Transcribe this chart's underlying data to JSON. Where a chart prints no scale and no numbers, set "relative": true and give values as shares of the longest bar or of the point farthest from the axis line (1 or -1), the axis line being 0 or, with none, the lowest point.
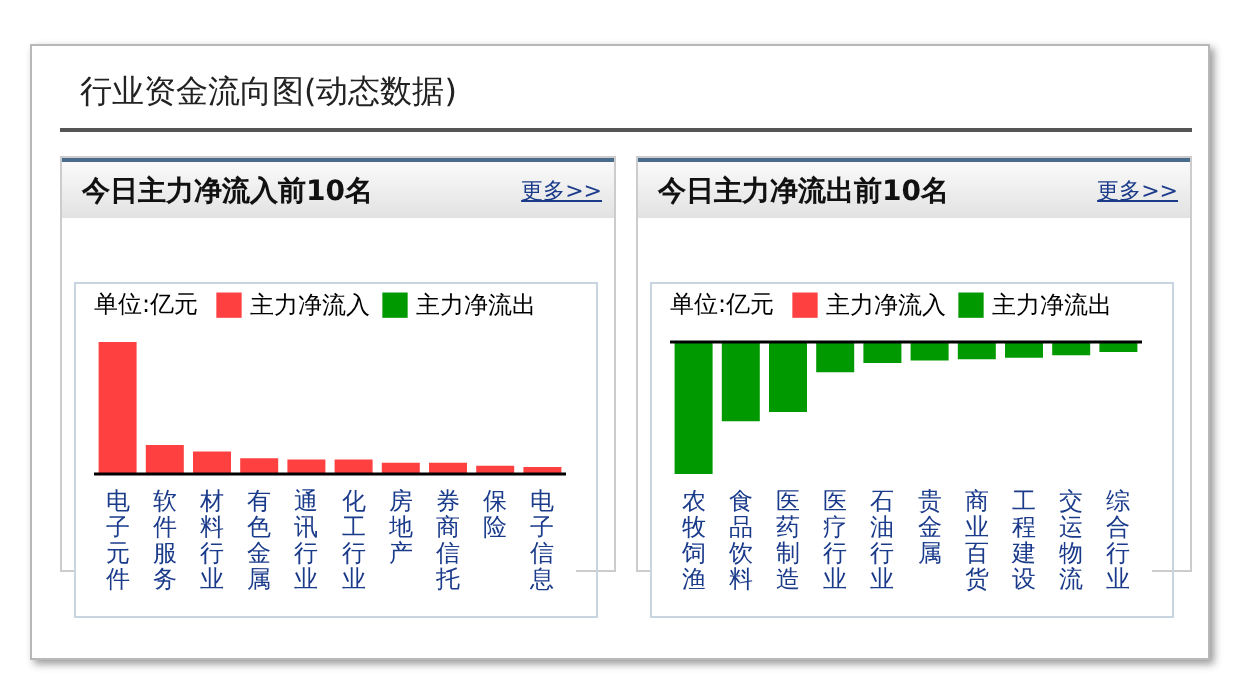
{
  "chart_data": [
    {
      "type": "bar",
      "title": "今日主力净流入前10名",
      "legend_title": "单位:亿元",
      "annotations": [
        "行业资金流向图(动态数据)",
        "更多>>"
      ],
      "relative": true,
      "legend": "top",
      "categories": [
        "电子元件",
        "软件服务",
        "材料行业",
        "有色金属",
        "通讯行业",
        "化工行业",
        "房地产",
        "券商信托",
        "保险",
        "电子信息"
      ],
      "series": [
        {
          "name": "主力净流入",
          "color": "#ff4040",
          "values": [
            1,
            0.22,
            0.17,
            0.12,
            0.11,
            0.11,
            0.085,
            0.085,
            0.063,
            0.053
          ]
        },
        {
          "name": "主力净流出",
          "color": "#009900",
          "values": [
            null,
            null,
            null,
            null,
            null,
            null,
            null,
            null,
            null,
            null
          ]
        }
      ]
    },
    {
      "type": "bar",
      "title": "今日主力净流出前10名",
      "legend_title": "单位:亿元",
      "annotations": [
        "更多>>"
      ],
      "relative": true,
      "legend": "top",
      "categories": [
        "农牧饲渔",
        "食品饮料",
        "医药制造",
        "医疗行业",
        "石油行业",
        "贵金属",
        "商业百货",
        "工程建设",
        "交运物流",
        "综合行业"
      ],
      "series": [
        {
          "name": "主力净流入",
          "color": "#ff4040",
          "values": [
            null,
            null,
            null,
            null,
            null,
            null,
            null,
            null,
            null,
            null
          ]
        },
        {
          "name": "主力净流出",
          "color": "#009900",
          "values": [
            -1,
            -0.6,
            -0.53,
            -0.23,
            -0.16,
            -0.14,
            -0.13,
            -0.12,
            -0.1,
            -0.075
          ]
        }
      ]
    }
  ]
}
